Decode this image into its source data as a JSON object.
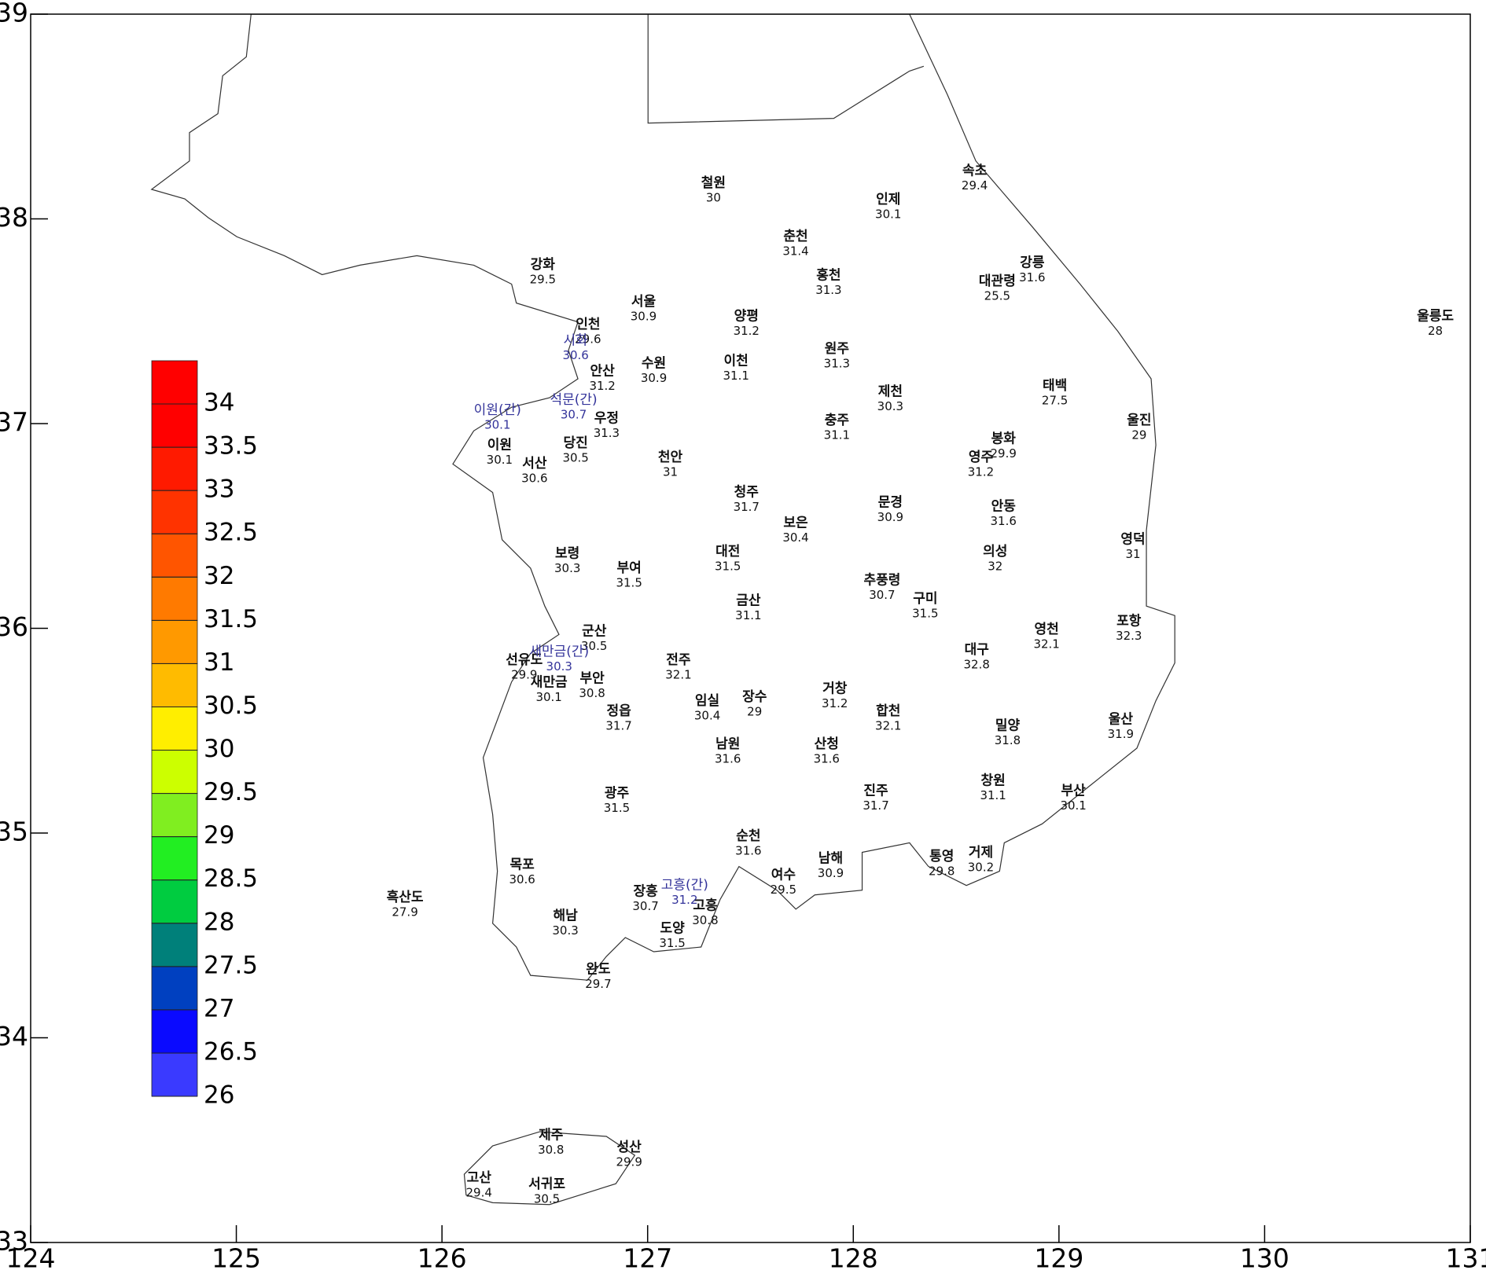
{
  "chart_data": {
    "type": "contour_map",
    "xlim": [
      124,
      131
    ],
    "ylim": [
      33,
      39
    ],
    "xticks": [
      124,
      125,
      126,
      127,
      128,
      129,
      130,
      131
    ],
    "yticks": [
      33,
      34,
      35,
      36,
      37,
      38,
      39
    ],
    "colorbar": {
      "lim": [
        26,
        34.5
      ],
      "ticks": [
        26,
        26.5,
        27,
        27.5,
        28,
        28.5,
        29,
        29.5,
        30,
        30.5,
        31,
        31.5,
        32,
        32.5,
        33,
        33.5,
        34
      ],
      "colors": [
        "#3a3aff",
        "#0a0aff",
        "#0040c0",
        "#00807a",
        "#00cc40",
        "#22ee22",
        "#80ee20",
        "#ccff00",
        "#ffee00",
        "#ffbb00",
        "#ff9900",
        "#ff7a00",
        "#ff5500",
        "#ff3300",
        "#ff1a00",
        "#ff0000",
        "#ff0000"
      ]
    },
    "stations": [
      {
        "name": "철원",
        "lon": 127.32,
        "lat": 38.14,
        "value": 30
      },
      {
        "name": "인제",
        "lon": 128.17,
        "lat": 38.06,
        "value": 30.1
      },
      {
        "name": "속초",
        "lon": 128.59,
        "lat": 38.2,
        "value": 29.4
      },
      {
        "name": "춘천",
        "lon": 127.72,
        "lat": 37.88,
        "value": 31.4
      },
      {
        "name": "홍천",
        "lon": 127.88,
        "lat": 37.69,
        "value": 31.3
      },
      {
        "name": "강릉",
        "lon": 128.87,
        "lat": 37.75,
        "value": 31.6
      },
      {
        "name": "대관령",
        "lon": 128.7,
        "lat": 37.66,
        "value": 25.5
      },
      {
        "name": "강화",
        "lon": 126.49,
        "lat": 37.74,
        "value": 29.5
      },
      {
        "name": "서울",
        "lon": 126.98,
        "lat": 37.56,
        "value": 30.9
      },
      {
        "name": "양평",
        "lon": 127.48,
        "lat": 37.49,
        "value": 31.2
      },
      {
        "name": "인천",
        "lon": 126.71,
        "lat": 37.45,
        "value": 29.6
      },
      {
        "name": "원주",
        "lon": 127.92,
        "lat": 37.33,
        "value": 31.3
      },
      {
        "name": "수원",
        "lon": 127.03,
        "lat": 37.26,
        "value": 30.9
      },
      {
        "name": "이천",
        "lon": 127.43,
        "lat": 37.27,
        "value": 31.1
      },
      {
        "name": "울릉도",
        "lon": 130.83,
        "lat": 37.49,
        "value": 28
      },
      {
        "name": "안산",
        "lon": 126.78,
        "lat": 37.22,
        "value": 31.2
      },
      {
        "name": "제천",
        "lon": 128.18,
        "lat": 37.12,
        "value": 30.3
      },
      {
        "name": "태백",
        "lon": 128.98,
        "lat": 37.15,
        "value": 27.5
      },
      {
        "name": "우정",
        "lon": 126.8,
        "lat": 36.99,
        "value": 31.3
      },
      {
        "name": "충주",
        "lon": 127.92,
        "lat": 36.98,
        "value": 31.1
      },
      {
        "name": "울진",
        "lon": 129.39,
        "lat": 36.98,
        "value": 29
      },
      {
        "name": "이원",
        "lon": 126.28,
        "lat": 36.86,
        "value": 30.1
      },
      {
        "name": "당진",
        "lon": 126.65,
        "lat": 36.87,
        "value": 30.5
      },
      {
        "name": "봉화",
        "lon": 128.73,
        "lat": 36.89,
        "value": 29.9
      },
      {
        "name": "서산",
        "lon": 126.45,
        "lat": 36.77,
        "value": 30.6
      },
      {
        "name": "천안",
        "lon": 127.11,
        "lat": 36.8,
        "value": 31
      },
      {
        "name": "영주",
        "lon": 128.62,
        "lat": 36.8,
        "value": 31.2
      },
      {
        "name": "청주",
        "lon": 127.48,
        "lat": 36.63,
        "value": 31.7
      },
      {
        "name": "문경",
        "lon": 128.18,
        "lat": 36.58,
        "value": 30.9
      },
      {
        "name": "안동",
        "lon": 128.73,
        "lat": 36.56,
        "value": 31.6
      },
      {
        "name": "보은",
        "lon": 127.72,
        "lat": 36.48,
        "value": 30.4
      },
      {
        "name": "영덕",
        "lon": 129.36,
        "lat": 36.4,
        "value": 31
      },
      {
        "name": "대전",
        "lon": 127.39,
        "lat": 36.34,
        "value": 31.5
      },
      {
        "name": "보령",
        "lon": 126.61,
        "lat": 36.33,
        "value": 30.3
      },
      {
        "name": "의성",
        "lon": 128.69,
        "lat": 36.34,
        "value": 32
      },
      {
        "name": "부여",
        "lon": 126.91,
        "lat": 36.26,
        "value": 31.5
      },
      {
        "name": "추풍령",
        "lon": 128.14,
        "lat": 36.2,
        "value": 30.7
      },
      {
        "name": "구미",
        "lon": 128.35,
        "lat": 36.11,
        "value": 31.5
      },
      {
        "name": "금산",
        "lon": 127.49,
        "lat": 36.1,
        "value": 31.1
      },
      {
        "name": "군산",
        "lon": 126.74,
        "lat": 35.95,
        "value": 30.5
      },
      {
        "name": "영천",
        "lon": 128.94,
        "lat": 35.96,
        "value": 32.1
      },
      {
        "name": "포항",
        "lon": 129.34,
        "lat": 36.0,
        "value": 32.3
      },
      {
        "name": "대구",
        "lon": 128.6,
        "lat": 35.86,
        "value": 32.8
      },
      {
        "name": "선유도",
        "lon": 126.4,
        "lat": 35.81,
        "value": 29.9
      },
      {
        "name": "전주",
        "lon": 127.15,
        "lat": 35.81,
        "value": 32.1
      },
      {
        "name": "부안",
        "lon": 126.73,
        "lat": 35.72,
        "value": 30.8
      },
      {
        "name": "새만금",
        "lon": 126.52,
        "lat": 35.7,
        "value": 30.1
      },
      {
        "name": "장수",
        "lon": 127.52,
        "lat": 35.63,
        "value": 29
      },
      {
        "name": "거창",
        "lon": 127.91,
        "lat": 35.67,
        "value": 31.2
      },
      {
        "name": "임실",
        "lon": 127.29,
        "lat": 35.61,
        "value": 30.4
      },
      {
        "name": "합천",
        "lon": 128.17,
        "lat": 35.56,
        "value": 32.1
      },
      {
        "name": "정읍",
        "lon": 126.86,
        "lat": 35.56,
        "value": 31.7
      },
      {
        "name": "울산",
        "lon": 129.3,
        "lat": 35.52,
        "value": 31.9
      },
      {
        "name": "밀양",
        "lon": 128.75,
        "lat": 35.49,
        "value": 31.8
      },
      {
        "name": "남원",
        "lon": 127.39,
        "lat": 35.4,
        "value": 31.6
      },
      {
        "name": "산청",
        "lon": 127.87,
        "lat": 35.4,
        "value": 31.6
      },
      {
        "name": "부산",
        "lon": 129.07,
        "lat": 35.17,
        "value": 30.1
      },
      {
        "name": "창원",
        "lon": 128.68,
        "lat": 35.22,
        "value": 31.1
      },
      {
        "name": "진주",
        "lon": 128.11,
        "lat": 35.17,
        "value": 31.7
      },
      {
        "name": "광주",
        "lon": 126.85,
        "lat": 35.16,
        "value": 31.5
      },
      {
        "name": "순천",
        "lon": 127.49,
        "lat": 34.95,
        "value": 31.6
      },
      {
        "name": "남해",
        "lon": 127.89,
        "lat": 34.84,
        "value": 30.9
      },
      {
        "name": "통영",
        "lon": 128.43,
        "lat": 34.85,
        "value": 29.8
      },
      {
        "name": "거제",
        "lon": 128.62,
        "lat": 34.87,
        "value": 30.2
      },
      {
        "name": "목포",
        "lon": 126.39,
        "lat": 34.81,
        "value": 30.6
      },
      {
        "name": "흑산도",
        "lon": 125.82,
        "lat": 34.65,
        "value": 27.9
      },
      {
        "name": "여수",
        "lon": 127.66,
        "lat": 34.76,
        "value": 29.5
      },
      {
        "name": "장흥",
        "lon": 126.99,
        "lat": 34.68,
        "value": 30.7
      },
      {
        "name": "고흥",
        "lon": 127.28,
        "lat": 34.61,
        "value": 30.8
      },
      {
        "name": "해남",
        "lon": 126.6,
        "lat": 34.56,
        "value": 30.3
      },
      {
        "name": "도양",
        "lon": 127.12,
        "lat": 34.5,
        "value": 31.5
      },
      {
        "name": "완도",
        "lon": 126.76,
        "lat": 34.3,
        "value": 29.7
      },
      {
        "name": "제주",
        "lon": 126.53,
        "lat": 33.49,
        "value": 30.8
      },
      {
        "name": "성산",
        "lon": 126.91,
        "lat": 33.43,
        "value": 29.9
      },
      {
        "name": "고산",
        "lon": 126.18,
        "lat": 33.28,
        "value": 29.4
      },
      {
        "name": "서귀포",
        "lon": 126.51,
        "lat": 33.25,
        "value": 30.5
      }
    ],
    "aux_stations": [
      {
        "name": "시화",
        "lon": 126.65,
        "lat": 37.37,
        "value": 30.6
      },
      {
        "name": "이원(간)",
        "lon": 126.27,
        "lat": 37.03,
        "value": 30.1
      },
      {
        "name": "석문(간)",
        "lon": 126.64,
        "lat": 37.08,
        "value": 30.7
      },
      {
        "name": "새만금(간)",
        "lon": 126.57,
        "lat": 35.85,
        "value": 30.3
      },
      {
        "name": "고흥(간)",
        "lon": 127.18,
        "lat": 34.71,
        "value": 31.2
      }
    ]
  }
}
